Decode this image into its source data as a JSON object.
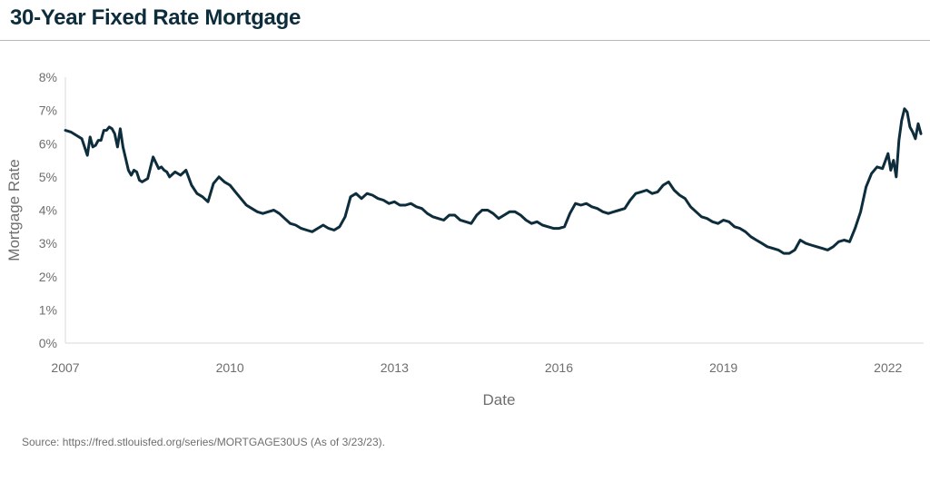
{
  "header": {
    "title": "30-Year Fixed Rate Mortgage"
  },
  "footer": {
    "source": "Source: https://fred.stlouisfed.org/series/MORTGAGE30US (As of 3/23/23)."
  },
  "colors": {
    "line": "#0d2d3c",
    "axis_text": "#6e6e6e",
    "title": "#0d2d3c",
    "axis_line": "#d9d9d9"
  },
  "chart_data": {
    "type": "line",
    "title": "30-Year Fixed Rate Mortgage",
    "xlabel": "Date",
    "ylabel": "Mortgage Rate",
    "xlim": [
      2007.0,
      2022.65
    ],
    "ylim": [
      0,
      8
    ],
    "grid": false,
    "y_ticks": [
      "0%",
      "1%",
      "2%",
      "3%",
      "4%",
      "5%",
      "6%",
      "7%",
      "8%"
    ],
    "x_ticks": [
      "2007",
      "2010",
      "2013",
      "2016",
      "2019",
      "2022"
    ],
    "series": [
      {
        "x": [
          2007.0,
          2007.1,
          2007.2,
          2007.3,
          2007.4,
          2007.45,
          2007.5,
          2007.55,
          2007.6,
          2007.65,
          2007.7,
          2007.75,
          2007.8,
          2007.85,
          2007.9,
          2007.95,
          2008.0,
          2008.05,
          2008.1,
          2008.15,
          2008.2,
          2008.25,
          2008.3,
          2008.35,
          2008.4,
          2008.5,
          2008.6,
          2008.7,
          2008.75,
          2008.8,
          2008.85,
          2008.9,
          2009.0,
          2009.1,
          2009.2,
          2009.3,
          2009.4,
          2009.5,
          2009.6,
          2009.7,
          2009.8,
          2009.9,
          2010.0,
          2010.1,
          2010.2,
          2010.3,
          2010.4,
          2010.5,
          2010.6,
          2010.7,
          2010.8,
          2010.9,
          2011.0,
          2011.1,
          2011.2,
          2011.3,
          2011.4,
          2011.5,
          2011.6,
          2011.7,
          2011.8,
          2011.9,
          2012.0,
          2012.1,
          2012.2,
          2012.3,
          2012.4,
          2012.5,
          2012.6,
          2012.7,
          2012.8,
          2012.9,
          2013.0,
          2013.1,
          2013.2,
          2013.3,
          2013.4,
          2013.5,
          2013.6,
          2013.7,
          2013.8,
          2013.9,
          2014.0,
          2014.1,
          2014.2,
          2014.3,
          2014.4,
          2014.5,
          2014.6,
          2014.7,
          2014.8,
          2014.9,
          2015.0,
          2015.1,
          2015.2,
          2015.3,
          2015.4,
          2015.5,
          2015.6,
          2015.7,
          2015.8,
          2015.9,
          2016.0,
          2016.1,
          2016.2,
          2016.3,
          2016.4,
          2016.5,
          2016.6,
          2016.7,
          2016.8,
          2016.9,
          2017.0,
          2017.1,
          2017.2,
          2017.3,
          2017.4,
          2017.5,
          2017.6,
          2017.7,
          2017.8,
          2017.9,
          2018.0,
          2018.1,
          2018.2,
          2018.3,
          2018.4,
          2018.5,
          2018.6,
          2018.7,
          2018.8,
          2018.9,
          2019.0,
          2019.1,
          2019.2,
          2019.3,
          2019.4,
          2019.5,
          2019.6,
          2019.7,
          2019.8,
          2019.9,
          2020.0,
          2020.1,
          2020.2,
          2020.3,
          2020.4,
          2020.5,
          2020.6,
          2020.7,
          2020.8,
          2020.9,
          2021.0,
          2021.1,
          2021.2,
          2021.3,
          2021.4,
          2021.5,
          2021.6,
          2021.7,
          2021.8,
          2021.9,
          2022.0,
          2022.05,
          2022.1,
          2022.15,
          2022.2,
          2022.25,
          2022.3,
          2022.35,
          2022.4,
          2022.45,
          2022.5,
          2022.55,
          2022.6
        ],
        "y": [
          6.4,
          6.35,
          6.25,
          6.15,
          5.65,
          6.2,
          5.9,
          5.95,
          6.1,
          6.1,
          6.4,
          6.4,
          6.5,
          6.45,
          6.3,
          5.9,
          6.45,
          5.9,
          5.55,
          5.2,
          5.05,
          5.2,
          5.15,
          4.9,
          4.85,
          4.95,
          5.6,
          5.25,
          5.3,
          5.2,
          5.15,
          5.0,
          5.15,
          5.05,
          5.2,
          4.75,
          4.5,
          4.4,
          4.25,
          4.8,
          5.0,
          4.85,
          4.75,
          4.55,
          4.35,
          4.15,
          4.05,
          3.95,
          3.9,
          3.95,
          4.0,
          3.9,
          3.75,
          3.6,
          3.55,
          3.45,
          3.4,
          3.35,
          3.45,
          3.55,
          3.45,
          3.4,
          3.5,
          3.8,
          4.4,
          4.5,
          4.35,
          4.5,
          4.45,
          4.35,
          4.3,
          4.2,
          4.25,
          4.15,
          4.15,
          4.2,
          4.1,
          4.05,
          3.9,
          3.8,
          3.75,
          3.7,
          3.85,
          3.85,
          3.7,
          3.65,
          3.6,
          3.85,
          4.0,
          4.0,
          3.9,
          3.75,
          3.85,
          3.95,
          3.95,
          3.85,
          3.7,
          3.6,
          3.65,
          3.55,
          3.5,
          3.45,
          3.45,
          3.5,
          3.9,
          4.2,
          4.15,
          4.2,
          4.1,
          4.05,
          3.95,
          3.9,
          3.95,
          4.0,
          4.05,
          4.3,
          4.5,
          4.55,
          4.6,
          4.5,
          4.55,
          4.75,
          4.85,
          4.6,
          4.45,
          4.35,
          4.1,
          3.95,
          3.8,
          3.75,
          3.65,
          3.6,
          3.7,
          3.65,
          3.5,
          3.45,
          3.35,
          3.2,
          3.1,
          3.0,
          2.9,
          2.85,
          2.8,
          2.7,
          2.7,
          2.8,
          3.1,
          3.0,
          2.95,
          2.9,
          2.85,
          2.8,
          2.9,
          3.05,
          3.1,
          3.05,
          3.45,
          3.95,
          4.7,
          5.1,
          5.3,
          5.25,
          5.7,
          5.2,
          5.5,
          5.0,
          6.1,
          6.7,
          7.05,
          6.95,
          6.5,
          6.35,
          6.15,
          6.6,
          6.3
        ],
        "color": "#0d2d3c"
      }
    ]
  }
}
